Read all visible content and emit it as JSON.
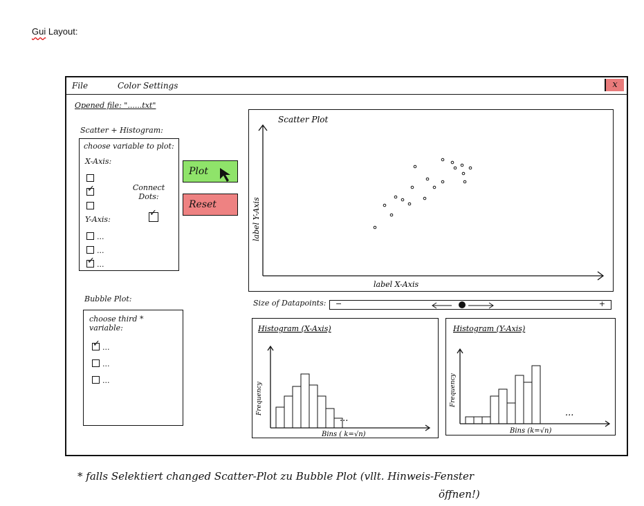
{
  "heading": {
    "gui": "Gui",
    "rest": " Layout:"
  },
  "menu": {
    "file": "File",
    "color_settings": "Color Settings",
    "close": "x"
  },
  "opened_file": "Opened file: \"......txt\"",
  "scatter_hist": {
    "heading": "Scatter + Histogram:",
    "choose_label": "choose variable to plot:",
    "x_axis_label": "X-Axis:",
    "x_options": [
      {
        "text": "",
        "checked": false
      },
      {
        "text": "",
        "checked": true
      },
      {
        "text": "",
        "checked": false
      }
    ],
    "y_axis_label": "Y-Axis:",
    "y_options": [
      {
        "text": "...",
        "checked": false
      },
      {
        "text": "...",
        "checked": false
      },
      {
        "text": "...",
        "checked": true
      }
    ],
    "connect_dots_label": "Connect Dots:"
  },
  "buttons": {
    "plot": "Plot",
    "reset": "Reset"
  },
  "bubble": {
    "heading": "Bubble Plot:",
    "choose_label": "choose third * variable:",
    "options": [
      {
        "text": "...",
        "checked": true
      },
      {
        "text": "...",
        "checked": false
      },
      {
        "text": "...",
        "checked": false
      }
    ]
  },
  "scatter_plot": {
    "title": "Scatter Plot",
    "xlabel": "label X-Axis",
    "ylabel": "label Y-Axis"
  },
  "slider": {
    "label": "Size of Datapoints:",
    "minus": "−",
    "plus": "+"
  },
  "hist_x": {
    "title": "Histogram (X-Axis)",
    "xlabel": "Bins ( k=√n)",
    "ylabel": "Frequency",
    "dots": "..."
  },
  "hist_y": {
    "title": "Histogram (Y-Axis)",
    "xlabel": "Bins (k=√n)",
    "ylabel": "Frequency",
    "dots": "..."
  },
  "footnote": {
    "line1": "* falls Selektiert changed Scatter-Plot zu Bubble Plot (vllt. Hinweis-Fenster",
    "line2": "öffnen!)"
  }
}
